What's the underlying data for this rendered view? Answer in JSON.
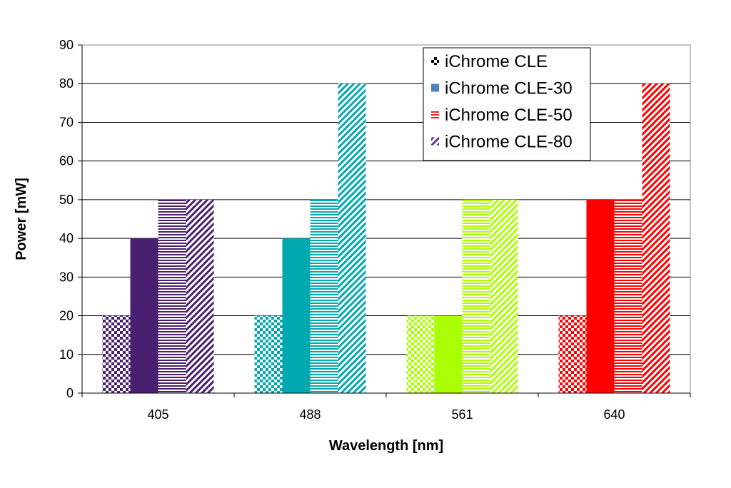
{
  "chart_data": {
    "type": "bar",
    "xlabel": "Wavelength [nm]",
    "ylabel": "Power [mW]",
    "ylim": [
      0,
      90
    ],
    "y_ticks": [
      0,
      10,
      20,
      30,
      40,
      50,
      60,
      70,
      80,
      90
    ],
    "categories": [
      "405",
      "488",
      "561",
      "640"
    ],
    "category_colors": [
      "#4b1f6f",
      "#00a9b0",
      "#aaff00",
      "#ff0000"
    ],
    "grid": true,
    "legend_position": "top-right",
    "series": [
      {
        "name": "iChrome CLE",
        "pattern": "checker",
        "values": [
          20,
          20,
          20,
          20
        ]
      },
      {
        "name": "iChrome CLE-30",
        "pattern": "solid",
        "values": [
          40,
          40,
          20,
          50
        ]
      },
      {
        "name": "iChrome CLE-50",
        "pattern": "horizontal",
        "values": [
          50,
          50,
          50,
          50
        ]
      },
      {
        "name": "iChrome CLE-80",
        "pattern": "diagonal",
        "values": [
          50,
          80,
          50,
          80
        ]
      }
    ],
    "legend_swatch_color": "#4f81bd"
  }
}
